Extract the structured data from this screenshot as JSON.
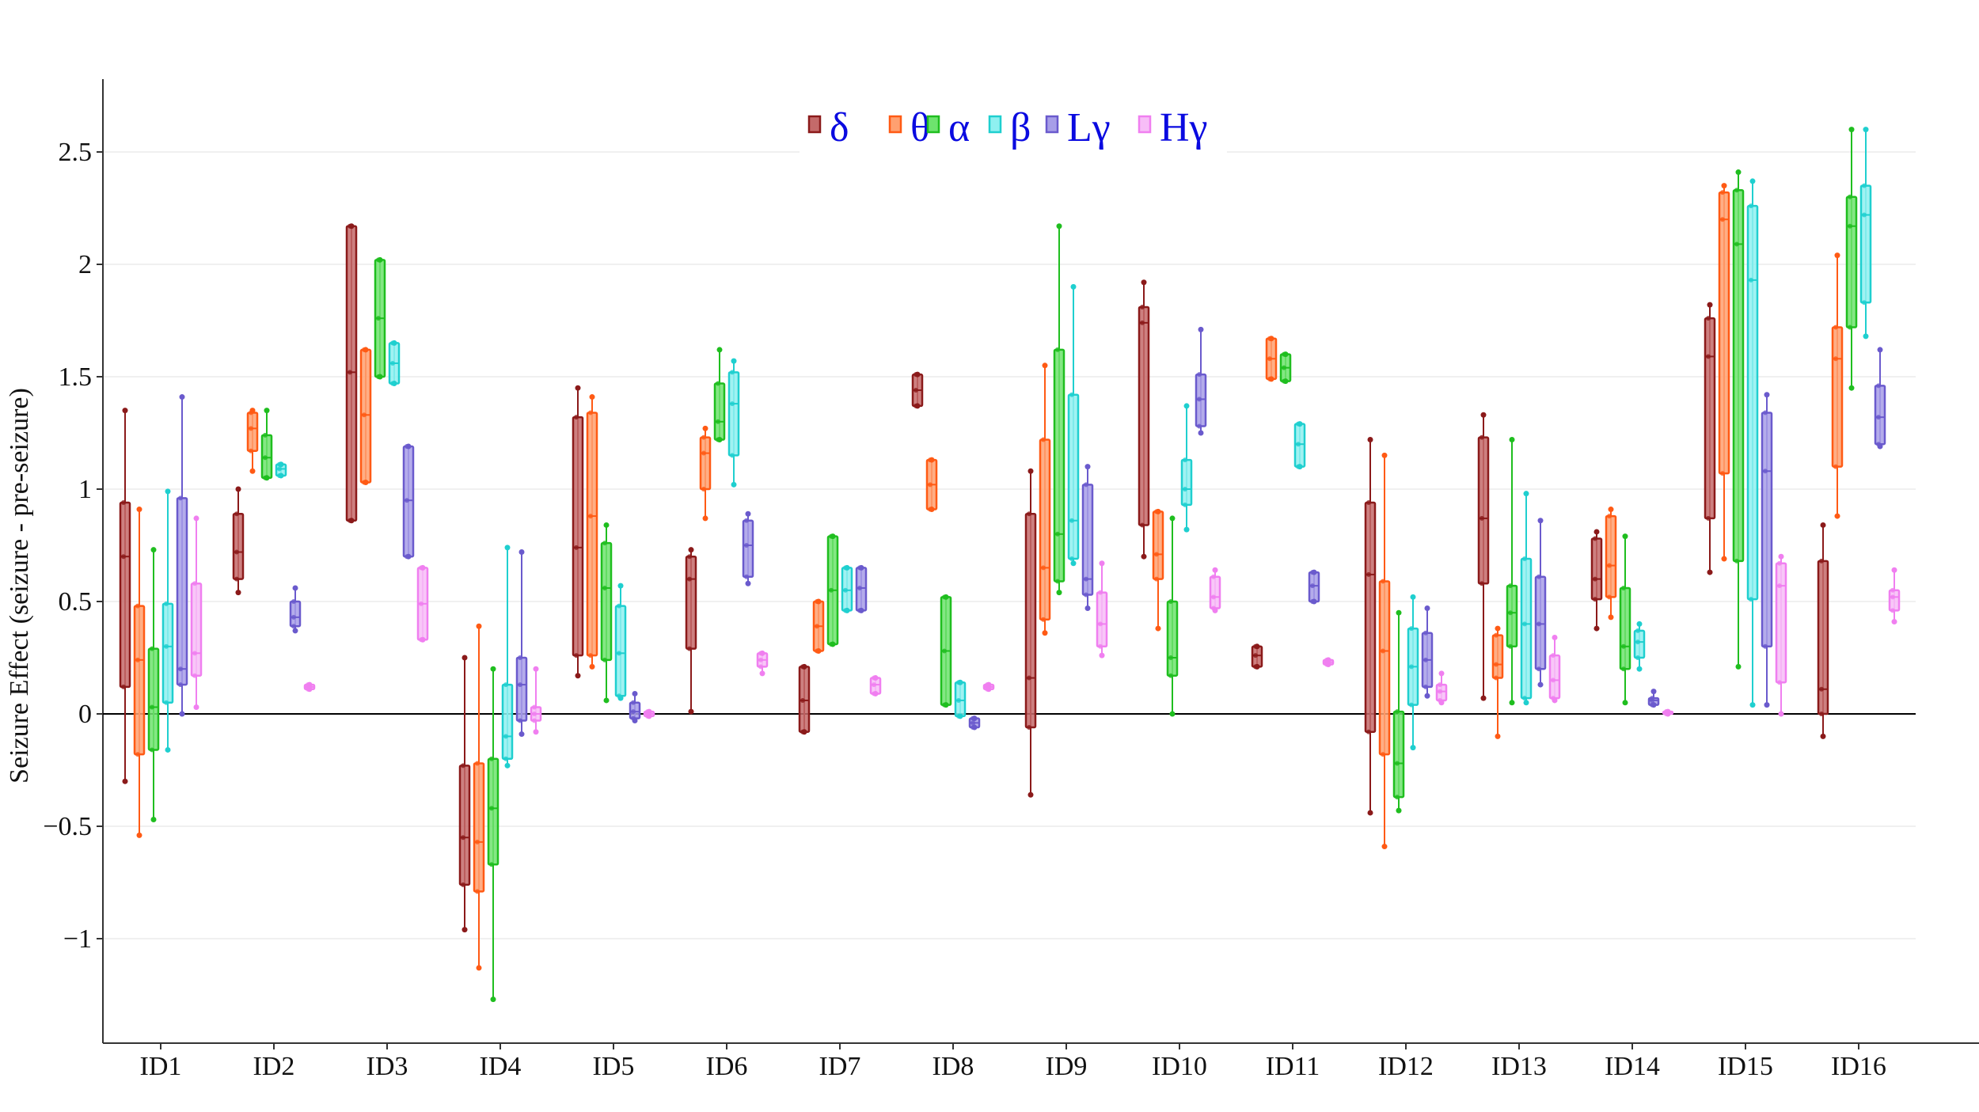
{
  "chart_data": {
    "type": "box",
    "ylabel": "Seizure Effect (seizure - pre-seizure)",
    "xlabel": "",
    "ylim": [
      -1.48,
      2.82
    ],
    "yticks": [
      -1,
      -0.5,
      0,
      0.5,
      1,
      1.5,
      2,
      2.5
    ],
    "ytick_labels": [
      "−1",
      "−0.5",
      "0",
      "0.5",
      "1",
      "1.5",
      "2",
      "2.5"
    ],
    "categories": [
      "ID1",
      "ID2",
      "ID3",
      "ID4",
      "ID5",
      "ID6",
      "ID7",
      "ID8",
      "ID9",
      "ID10",
      "ID11",
      "ID12",
      "ID13",
      "ID14",
      "ID15",
      "ID16"
    ],
    "legend_position": "top-center",
    "grid": "horizontal",
    "zero_line": true,
    "series": [
      {
        "name": "δ",
        "color": "#8b1a1a",
        "fill": "#c46a6a",
        "boxes": [
          {
            "min": -0.3,
            "q1": 0.12,
            "median": 0.7,
            "q3": 0.94,
            "max": 1.35
          },
          {
            "min": 0.54,
            "q1": 0.6,
            "median": 0.72,
            "q3": 0.89,
            "max": 1.0
          },
          {
            "min": 0.86,
            "q1": 0.86,
            "median": 1.52,
            "q3": 2.17,
            "max": 2.17
          },
          {
            "min": -0.96,
            "q1": -0.76,
            "median": -0.55,
            "q3": -0.23,
            "max": 0.25
          },
          {
            "min": 0.17,
            "q1": 0.26,
            "median": 0.74,
            "q3": 1.32,
            "max": 1.45
          },
          {
            "min": 0.01,
            "q1": 0.29,
            "median": 0.6,
            "q3": 0.7,
            "max": 0.73
          },
          {
            "min": -0.08,
            "q1": -0.08,
            "median": 0.06,
            "q3": 0.21,
            "max": 0.21
          },
          {
            "min": 1.37,
            "q1": 1.37,
            "median": 1.44,
            "q3": 1.51,
            "max": 1.51
          },
          {
            "min": -0.36,
            "q1": -0.06,
            "median": 0.16,
            "q3": 0.89,
            "max": 1.08
          },
          {
            "min": 0.7,
            "q1": 0.84,
            "median": 1.74,
            "q3": 1.81,
            "max": 1.92
          },
          {
            "min": 0.21,
            "q1": 0.21,
            "median": 0.26,
            "q3": 0.3,
            "max": 0.3
          },
          {
            "min": -0.44,
            "q1": -0.08,
            "median": 0.62,
            "q3": 0.94,
            "max": 1.22
          },
          {
            "min": 0.07,
            "q1": 0.58,
            "median": 0.87,
            "q3": 1.23,
            "max": 1.33
          },
          {
            "min": 0.38,
            "q1": 0.51,
            "median": 0.6,
            "q3": 0.78,
            "max": 0.81
          },
          {
            "min": 0.63,
            "q1": 0.87,
            "median": 1.59,
            "q3": 1.76,
            "max": 1.82
          },
          {
            "min": -0.1,
            "q1": 0.0,
            "median": 0.11,
            "q3": 0.68,
            "max": 0.84
          }
        ]
      },
      {
        "name": "θ",
        "color": "#ff5a14",
        "fill": "#ffa070",
        "boxes": [
          {
            "min": -0.54,
            "q1": -0.18,
            "median": 0.24,
            "q3": 0.48,
            "max": 0.91
          },
          {
            "min": 1.08,
            "q1": 1.17,
            "median": 1.27,
            "q3": 1.34,
            "max": 1.35
          },
          {
            "min": 1.03,
            "q1": 1.03,
            "median": 1.33,
            "q3": 1.62,
            "max": 1.62
          },
          {
            "min": -1.13,
            "q1": -0.79,
            "median": -0.57,
            "q3": -0.22,
            "max": 0.39
          },
          {
            "min": 0.21,
            "q1": 0.26,
            "median": 0.88,
            "q3": 1.34,
            "max": 1.41
          },
          {
            "min": 0.87,
            "q1": 1.0,
            "median": 1.16,
            "q3": 1.23,
            "max": 1.27
          },
          {
            "min": 0.28,
            "q1": 0.28,
            "median": 0.39,
            "q3": 0.5,
            "max": 0.5
          },
          {
            "min": 0.91,
            "q1": 0.91,
            "median": 1.02,
            "q3": 1.13,
            "max": 1.13
          },
          {
            "min": 0.36,
            "q1": 0.42,
            "median": 0.65,
            "q3": 1.22,
            "max": 1.55
          },
          {
            "min": 0.38,
            "q1": 0.6,
            "median": 0.71,
            "q3": 0.9,
            "max": 0.9
          },
          {
            "min": 1.49,
            "q1": 1.49,
            "median": 1.58,
            "q3": 1.67,
            "max": 1.67
          },
          {
            "min": -0.59,
            "q1": -0.18,
            "median": 0.28,
            "q3": 0.59,
            "max": 1.15
          },
          {
            "min": -0.1,
            "q1": 0.16,
            "median": 0.22,
            "q3": 0.35,
            "max": 0.38
          },
          {
            "min": 0.43,
            "q1": 0.52,
            "median": 0.66,
            "q3": 0.88,
            "max": 0.91
          },
          {
            "min": 0.69,
            "q1": 1.07,
            "median": 2.2,
            "q3": 2.32,
            "max": 2.35
          },
          {
            "min": 0.88,
            "q1": 1.1,
            "median": 1.58,
            "q3": 1.72,
            "max": 2.04
          }
        ]
      },
      {
        "name": "α",
        "color": "#1fbe1f",
        "fill": "#6ee36e",
        "boxes": [
          {
            "min": -0.47,
            "q1": -0.16,
            "median": 0.03,
            "q3": 0.29,
            "max": 0.73
          },
          {
            "min": 1.05,
            "q1": 1.05,
            "median": 1.14,
            "q3": 1.24,
            "max": 1.35
          },
          {
            "min": 1.5,
            "q1": 1.5,
            "median": 1.76,
            "q3": 2.02,
            "max": 2.02
          },
          {
            "min": -1.27,
            "q1": -0.67,
            "median": -0.42,
            "q3": -0.2,
            "max": 0.2
          },
          {
            "min": 0.06,
            "q1": 0.24,
            "median": 0.56,
            "q3": 0.76,
            "max": 0.84
          },
          {
            "min": 1.22,
            "q1": 1.22,
            "median": 1.3,
            "q3": 1.47,
            "max": 1.62
          },
          {
            "min": 0.31,
            "q1": 0.31,
            "median": 0.55,
            "q3": 0.79,
            "max": 0.79
          },
          {
            "min": 0.04,
            "q1": 0.04,
            "median": 0.28,
            "q3": 0.52,
            "max": 0.52
          },
          {
            "min": 0.54,
            "q1": 0.59,
            "median": 0.8,
            "q3": 1.62,
            "max": 2.17
          },
          {
            "min": 0.0,
            "q1": 0.17,
            "median": 0.25,
            "q3": 0.5,
            "max": 0.87
          },
          {
            "min": 1.48,
            "q1": 1.48,
            "median": 1.54,
            "q3": 1.6,
            "max": 1.6
          },
          {
            "min": -0.43,
            "q1": -0.37,
            "median": -0.22,
            "q3": 0.01,
            "max": 0.45
          },
          {
            "min": 0.05,
            "q1": 0.3,
            "median": 0.45,
            "q3": 0.57,
            "max": 1.22
          },
          {
            "min": 0.05,
            "q1": 0.2,
            "median": 0.3,
            "q3": 0.56,
            "max": 0.79
          },
          {
            "min": 0.21,
            "q1": 0.68,
            "median": 2.09,
            "q3": 2.33,
            "max": 2.41
          },
          {
            "min": 1.45,
            "q1": 1.72,
            "median": 2.17,
            "q3": 2.3,
            "max": 2.6
          }
        ]
      },
      {
        "name": "β",
        "color": "#1fcfcf",
        "fill": "#8ff0f0",
        "boxes": [
          {
            "min": -0.16,
            "q1": 0.05,
            "median": 0.3,
            "q3": 0.49,
            "max": 0.99
          },
          {
            "min": 1.06,
            "q1": 1.06,
            "median": 1.09,
            "q3": 1.11,
            "max": 1.11
          },
          {
            "min": 1.47,
            "q1": 1.47,
            "median": 1.56,
            "q3": 1.65,
            "max": 1.65
          },
          {
            "min": -0.23,
            "q1": -0.2,
            "median": -0.1,
            "q3": 0.13,
            "max": 0.74
          },
          {
            "min": 0.07,
            "q1": 0.08,
            "median": 0.27,
            "q3": 0.48,
            "max": 0.57
          },
          {
            "min": 1.02,
            "q1": 1.15,
            "median": 1.38,
            "q3": 1.52,
            "max": 1.57
          },
          {
            "min": 0.46,
            "q1": 0.46,
            "median": 0.55,
            "q3": 0.65,
            "max": 0.65
          },
          {
            "min": -0.01,
            "q1": -0.01,
            "median": 0.06,
            "q3": 0.14,
            "max": 0.14
          },
          {
            "min": 0.67,
            "q1": 0.69,
            "median": 0.86,
            "q3": 1.42,
            "max": 1.9
          },
          {
            "min": 0.82,
            "q1": 0.93,
            "median": 1.0,
            "q3": 1.13,
            "max": 1.37
          },
          {
            "min": 1.1,
            "q1": 1.1,
            "median": 1.2,
            "q3": 1.29,
            "max": 1.29
          },
          {
            "min": -0.15,
            "q1": 0.04,
            "median": 0.21,
            "q3": 0.38,
            "max": 0.52
          },
          {
            "min": 0.05,
            "q1": 0.07,
            "median": 0.4,
            "q3": 0.69,
            "max": 0.98
          },
          {
            "min": 0.2,
            "q1": 0.25,
            "median": 0.32,
            "q3": 0.37,
            "max": 0.4
          },
          {
            "min": 0.04,
            "q1": 0.51,
            "median": 1.93,
            "q3": 2.26,
            "max": 2.37
          },
          {
            "min": 1.68,
            "q1": 1.83,
            "median": 2.22,
            "q3": 2.35,
            "max": 2.6
          }
        ]
      },
      {
        "name": "Lγ",
        "color": "#6a5acd",
        "fill": "#a79ee8",
        "boxes": [
          {
            "min": 0.0,
            "q1": 0.13,
            "median": 0.2,
            "q3": 0.96,
            "max": 1.41
          },
          {
            "min": 0.37,
            "q1": 0.39,
            "median": 0.43,
            "q3": 0.5,
            "max": 0.56
          },
          {
            "min": 0.7,
            "q1": 0.7,
            "median": 0.95,
            "q3": 1.19,
            "max": 1.19
          },
          {
            "min": -0.09,
            "q1": -0.03,
            "median": 0.13,
            "q3": 0.25,
            "max": 0.72
          },
          {
            "min": -0.03,
            "q1": -0.02,
            "median": 0.01,
            "q3": 0.05,
            "max": 0.09
          },
          {
            "min": 0.58,
            "q1": 0.61,
            "median": 0.75,
            "q3": 0.86,
            "max": 0.89
          },
          {
            "min": 0.46,
            "q1": 0.46,
            "median": 0.56,
            "q3": 0.65,
            "max": 0.65
          },
          {
            "min": -0.06,
            "q1": -0.06,
            "median": -0.04,
            "q3": -0.02,
            "max": -0.02
          },
          {
            "min": 0.47,
            "q1": 0.53,
            "median": 0.6,
            "q3": 1.02,
            "max": 1.1
          },
          {
            "min": 1.25,
            "q1": 1.28,
            "median": 1.4,
            "q3": 1.51,
            "max": 1.71
          },
          {
            "min": 0.5,
            "q1": 0.5,
            "median": 0.57,
            "q3": 0.63,
            "max": 0.63
          },
          {
            "min": 0.08,
            "q1": 0.12,
            "median": 0.24,
            "q3": 0.36,
            "max": 0.47
          },
          {
            "min": 0.13,
            "q1": 0.2,
            "median": 0.4,
            "q3": 0.61,
            "max": 0.86
          },
          {
            "min": 0.04,
            "q1": 0.04,
            "median": 0.06,
            "q3": 0.07,
            "max": 0.1
          },
          {
            "min": 0.04,
            "q1": 0.3,
            "median": 1.08,
            "q3": 1.34,
            "max": 1.42
          },
          {
            "min": 1.19,
            "q1": 1.2,
            "median": 1.32,
            "q3": 1.46,
            "max": 1.62
          }
        ]
      },
      {
        "name": "Hγ",
        "color": "#f07ff0",
        "fill": "#f7bdf7",
        "boxes": [
          {
            "min": 0.03,
            "q1": 0.17,
            "median": 0.27,
            "q3": 0.58,
            "max": 0.87
          },
          {
            "min": 0.11,
            "q1": 0.11,
            "median": 0.12,
            "q3": 0.13,
            "max": 0.13
          },
          {
            "min": 0.33,
            "q1": 0.33,
            "median": 0.49,
            "q3": 0.65,
            "max": 0.65
          },
          {
            "min": -0.08,
            "q1": -0.03,
            "median": 0.0,
            "q3": 0.03,
            "max": 0.2
          },
          {
            "min": -0.01,
            "q1": -0.01,
            "median": 0.0,
            "q3": 0.01,
            "max": 0.01
          },
          {
            "min": 0.18,
            "q1": 0.21,
            "median": 0.24,
            "q3": 0.27,
            "max": 0.27
          },
          {
            "min": 0.09,
            "q1": 0.09,
            "median": 0.13,
            "q3": 0.16,
            "max": 0.16
          },
          {
            "min": 0.11,
            "q1": 0.11,
            "median": 0.12,
            "q3": 0.13,
            "max": 0.13
          },
          {
            "min": 0.26,
            "q1": 0.3,
            "median": 0.4,
            "q3": 0.54,
            "max": 0.67
          },
          {
            "min": 0.46,
            "q1": 0.47,
            "median": 0.52,
            "q3": 0.61,
            "max": 0.64
          },
          {
            "min": 0.22,
            "q1": 0.22,
            "median": 0.23,
            "q3": 0.24,
            "max": 0.24
          },
          {
            "min": 0.05,
            "q1": 0.06,
            "median": 0.1,
            "q3": 0.13,
            "max": 0.18
          },
          {
            "min": 0.06,
            "q1": 0.07,
            "median": 0.15,
            "q3": 0.26,
            "max": 0.34
          },
          {
            "min": 0.0,
            "q1": 0.0,
            "median": 0.01,
            "q3": 0.01,
            "max": 0.01
          },
          {
            "min": 0.0,
            "q1": 0.14,
            "median": 0.57,
            "q3": 0.67,
            "max": 0.7
          },
          {
            "min": 0.41,
            "q1": 0.46,
            "median": 0.52,
            "q3": 0.55,
            "max": 0.64
          }
        ]
      }
    ]
  }
}
